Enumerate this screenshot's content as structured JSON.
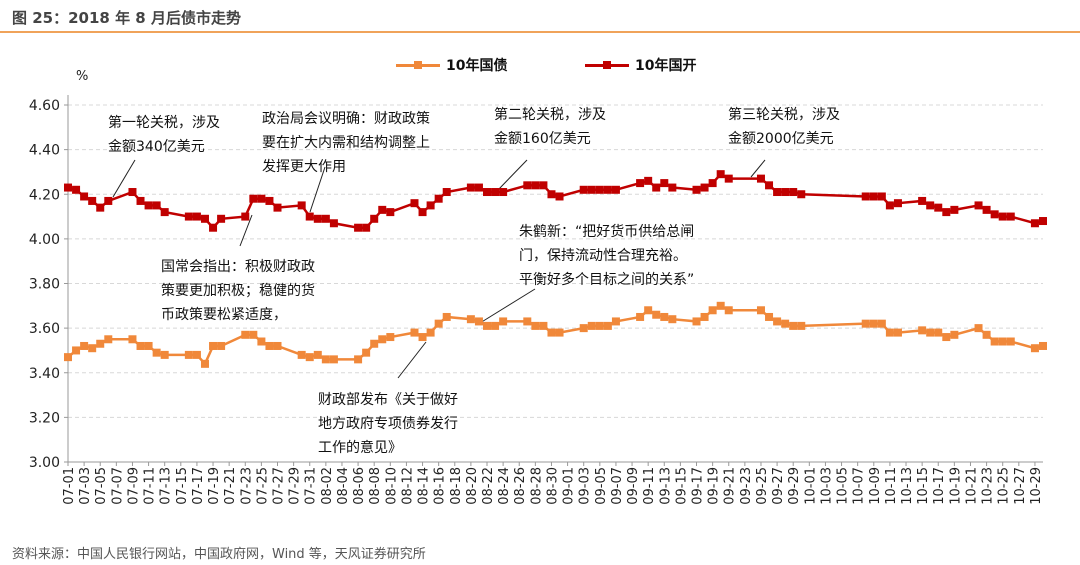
{
  "title": "图 25：2018 年 8 月后债市走势",
  "source": "资料来源：中国人民银行网站，中国政府网，Wind 等，天风证券研究所",
  "annotations": {
    "tariff1": [
      "第一轮关税，涉及",
      "金额340亿美元"
    ],
    "politburo": [
      "政治局会议明确：财政政策",
      "要在扩大内需和结构调整上",
      "发挥更大作用"
    ],
    "tariff2": [
      "第二轮关税，涉及",
      "金额160亿美元"
    ],
    "tariff3": [
      "第三轮关税，涉及",
      "金额2000亿美元"
    ],
    "state_council": [
      "国常会指出：积极财政政",
      "策要更加积极；稳健的货",
      "币政策要松紧适度，"
    ],
    "zhu": [
      "朱鹤新：“把好货币供给总闸",
      "门，保持流动性合理充裕。",
      "平衡好多个目标之间的关系”"
    ],
    "mof": [
      "财政部发布《关于做好",
      "地方政府专项债券发行",
      "工作的意见》"
    ]
  },
  "chart_data": {
    "type": "line",
    "title": "图 25：2018 年 8 月后债市走势",
    "ylabel": "%",
    "ylim": [
      3.0,
      4.6
    ],
    "yticks": [
      "3.00",
      "3.20",
      "3.40",
      "3.60",
      "3.80",
      "4.00",
      "4.20",
      "4.40",
      "4.60"
    ],
    "xlim": [
      "07-01",
      "10-30"
    ],
    "xticks": [
      "07-01",
      "07-03",
      "07-05",
      "07-07",
      "07-09",
      "07-11",
      "07-13",
      "07-15",
      "07-17",
      "07-19",
      "07-21",
      "07-23",
      "07-25",
      "07-27",
      "07-29",
      "07-31",
      "08-02",
      "08-04",
      "08-06",
      "08-08",
      "08-10",
      "08-12",
      "08-14",
      "08-16",
      "08-18",
      "08-20",
      "08-22",
      "08-24",
      "08-26",
      "08-28",
      "08-30",
      "09-01",
      "09-03",
      "09-05",
      "09-07",
      "09-09",
      "09-11",
      "09-13",
      "09-15",
      "09-17",
      "09-19",
      "09-21",
      "09-23",
      "09-25",
      "09-27",
      "09-29",
      "10-01",
      "10-03",
      "10-05",
      "10-07",
      "10-09",
      "10-11",
      "10-13",
      "10-15",
      "10-17",
      "10-19",
      "10-21",
      "10-23",
      "10-25",
      "10-27",
      "10-29"
    ],
    "grid": true,
    "legend_position": "top-right",
    "x": [
      "07-01",
      "07-02",
      "07-03",
      "07-04",
      "07-05",
      "07-06",
      "07-09",
      "07-10",
      "07-11",
      "07-12",
      "07-13",
      "07-16",
      "07-17",
      "07-18",
      "07-19",
      "07-20",
      "07-23",
      "07-24",
      "07-25",
      "07-26",
      "07-27",
      "07-30",
      "07-31",
      "08-01",
      "08-02",
      "08-03",
      "08-06",
      "08-07",
      "08-08",
      "08-09",
      "08-10",
      "08-13",
      "08-14",
      "08-15",
      "08-16",
      "08-17",
      "08-20",
      "08-21",
      "08-22",
      "08-23",
      "08-24",
      "08-27",
      "08-28",
      "08-29",
      "08-30",
      "08-31",
      "09-03",
      "09-04",
      "09-05",
      "09-06",
      "09-07",
      "09-10",
      "09-11",
      "09-12",
      "09-13",
      "09-14",
      "09-17",
      "09-18",
      "09-19",
      "09-20",
      "09-21",
      "09-25",
      "09-26",
      "09-27",
      "09-28",
      "09-29",
      "09-30",
      "10-08",
      "10-09",
      "10-10",
      "10-11",
      "10-12",
      "10-15",
      "10-16",
      "10-17",
      "10-18",
      "10-19",
      "10-22",
      "10-23",
      "10-24",
      "10-25",
      "10-26",
      "10-29",
      "10-30"
    ],
    "series": [
      {
        "name": "10年国债",
        "color": "#F0883A",
        "values": [
          3.47,
          3.5,
          3.52,
          3.51,
          3.53,
          3.55,
          3.55,
          3.52,
          3.52,
          3.49,
          3.48,
          3.48,
          3.48,
          3.44,
          3.52,
          3.52,
          3.57,
          3.57,
          3.54,
          3.52,
          3.52,
          3.48,
          3.47,
          3.48,
          3.46,
          3.46,
          3.46,
          3.49,
          3.53,
          3.55,
          3.56,
          3.58,
          3.56,
          3.58,
          3.62,
          3.65,
          3.64,
          3.63,
          3.61,
          3.61,
          3.63,
          3.63,
          3.61,
          3.61,
          3.58,
          3.58,
          3.6,
          3.61,
          3.61,
          3.61,
          3.63,
          3.65,
          3.68,
          3.66,
          3.65,
          3.64,
          3.63,
          3.65,
          3.68,
          3.7,
          3.68,
          3.68,
          3.65,
          3.63,
          3.62,
          3.61,
          3.61,
          3.62,
          3.62,
          3.62,
          3.58,
          3.58,
          3.59,
          3.58,
          3.58,
          3.56,
          3.57,
          3.6,
          3.57,
          3.54,
          3.54,
          3.54,
          3.51,
          3.52
        ]
      },
      {
        "name": "10年国开",
        "color": "#C00000",
        "values": [
          4.23,
          4.22,
          4.19,
          4.17,
          4.14,
          4.17,
          4.21,
          4.17,
          4.15,
          4.15,
          4.12,
          4.1,
          4.1,
          4.09,
          4.05,
          4.09,
          4.1,
          4.18,
          4.18,
          4.17,
          4.14,
          4.15,
          4.1,
          4.09,
          4.09,
          4.07,
          4.05,
          4.05,
          4.09,
          4.13,
          4.12,
          4.16,
          4.12,
          4.15,
          4.18,
          4.21,
          4.23,
          4.23,
          4.21,
          4.21,
          4.21,
          4.24,
          4.24,
          4.24,
          4.2,
          4.19,
          4.22,
          4.22,
          4.22,
          4.22,
          4.22,
          4.25,
          4.26,
          4.23,
          4.25,
          4.23,
          4.22,
          4.23,
          4.25,
          4.29,
          4.27,
          4.27,
          4.24,
          4.21,
          4.21,
          4.21,
          4.2,
          4.19,
          4.19,
          4.19,
          4.15,
          4.16,
          4.17,
          4.15,
          4.14,
          4.12,
          4.13,
          4.15,
          4.13,
          4.11,
          4.1,
          4.1,
          4.07,
          4.08
        ]
      }
    ]
  }
}
